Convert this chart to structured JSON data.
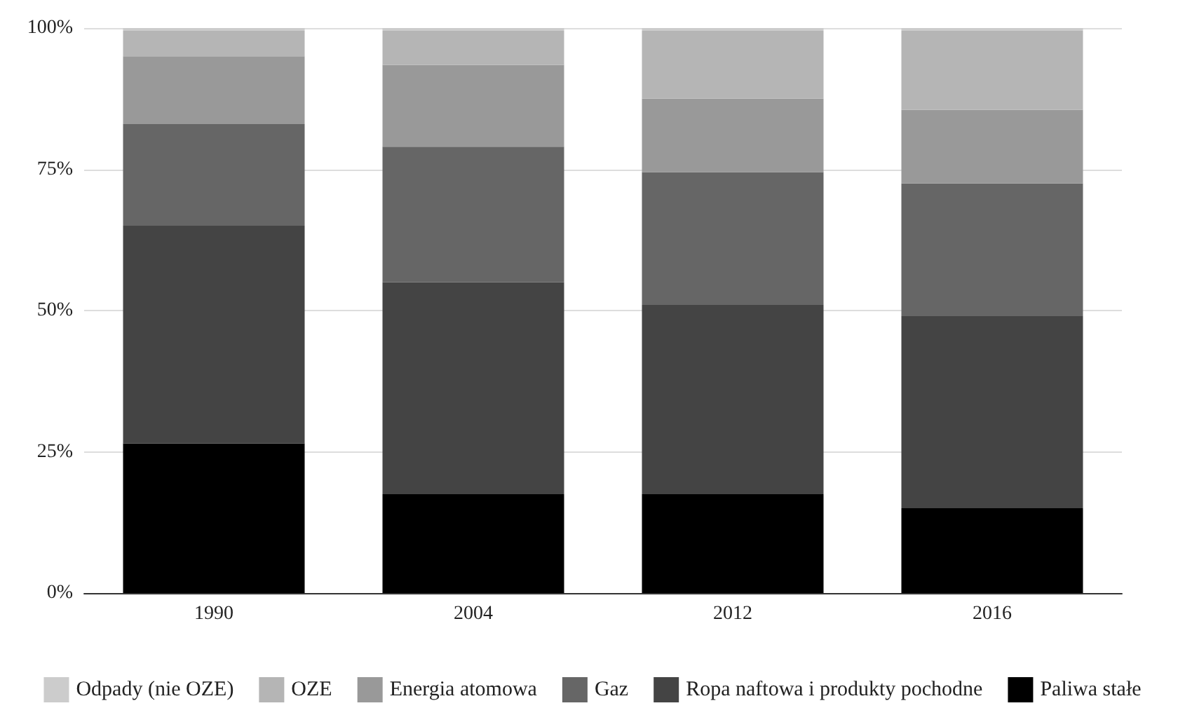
{
  "chart_data": {
    "type": "bar",
    "stacked": true,
    "categories": [
      "1990",
      "2004",
      "2012",
      "2016"
    ],
    "series": [
      {
        "name": "Paliwa stałe",
        "color": "#000000",
        "values": [
          26.5,
          17.5,
          17.5,
          15
        ]
      },
      {
        "name": "Ropa naftowa i produkty pochodne",
        "color": "#444444",
        "values": [
          38.5,
          37.5,
          33.5,
          34
        ]
      },
      {
        "name": "Gaz",
        "color": "#666666",
        "values": [
          18,
          24,
          23.5,
          23.5
        ]
      },
      {
        "name": "Energia atomowa",
        "color": "#999999",
        "values": [
          12,
          14.5,
          13,
          13
        ]
      },
      {
        "name": "OZE",
        "color": "#b5b5b5",
        "values": [
          4.5,
          6,
          12,
          14
        ]
      },
      {
        "name": "Odpady (nie OZE)",
        "color": "#cccccc",
        "values": [
          0.5,
          0.5,
          0.5,
          0.5
        ]
      }
    ],
    "ylim": [
      0,
      100
    ],
    "yticks": [
      {
        "value": 0,
        "label": "0%"
      },
      {
        "value": 25,
        "label": "25%"
      },
      {
        "value": 50,
        "label": "50%"
      },
      {
        "value": 75,
        "label": "75%"
      },
      {
        "value": 100,
        "label": "100%"
      }
    ],
    "grid": "y",
    "legend": "bottom"
  }
}
